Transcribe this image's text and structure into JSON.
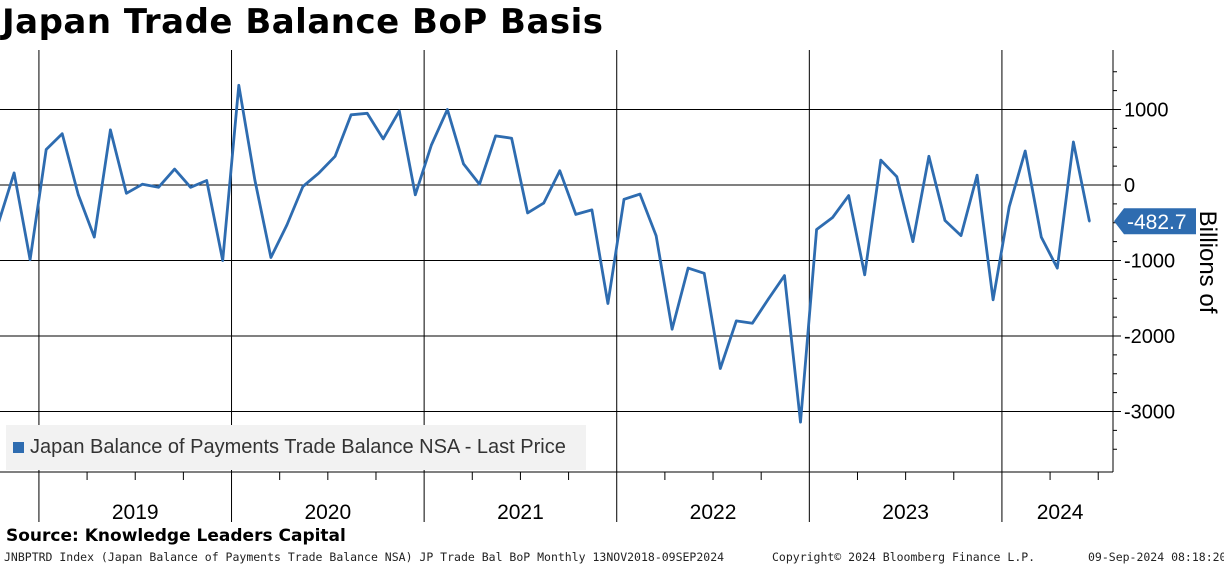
{
  "title": "Japan Trade Balance BoP Basis",
  "source": "Source: Knowledge Leaders Capital",
  "footer": {
    "left": "JNBPTRD Index (Japan Balance of Payments Trade Balance NSA) JP Trade Bal BoP  Monthly 13NOV2018-09SEP2024",
    "center": "Copyright© 2024 Bloomberg Finance L.P.",
    "right": "09-Sep-2024 08:18:20"
  },
  "colors": {
    "line": "#2e6cb0",
    "grid": "#000000",
    "legend_bg": "#f2f2f2"
  },
  "chart_data": {
    "type": "line",
    "title": "Japan Trade Balance BoP Basis",
    "ylabel": "Billions of",
    "ylim": [
      -3800,
      1800
    ],
    "yticks": [
      1000,
      0,
      -1000,
      -2000,
      -3000
    ],
    "ytick_labels": [
      "1000",
      "0",
      "-1000",
      "-2000",
      "-3000"
    ],
    "year_labels": [
      "2019",
      "2020",
      "2021",
      "2022",
      "2023",
      "2024"
    ],
    "legend": "Japan Balance of Payments Trade Balance NSA - Last Price",
    "last_value_label": "-482.7",
    "grid": true,
    "series": [
      {
        "name": "Japan Balance of Payments Trade Balance NSA - Last Price",
        "x": [
          "2018-11",
          "2018-12",
          "2019-01",
          "2019-02",
          "2019-03",
          "2019-04",
          "2019-05",
          "2019-06",
          "2019-07",
          "2019-08",
          "2019-09",
          "2019-10",
          "2019-11",
          "2019-12",
          "2020-01",
          "2020-02",
          "2020-03",
          "2020-04",
          "2020-05",
          "2020-06",
          "2020-07",
          "2020-08",
          "2020-09",
          "2020-10",
          "2020-11",
          "2020-12",
          "2021-01",
          "2021-02",
          "2021-03",
          "2021-04",
          "2021-05",
          "2021-06",
          "2021-07",
          "2021-08",
          "2021-09",
          "2021-10",
          "2021-11",
          "2021-12",
          "2022-01",
          "2022-02",
          "2022-03",
          "2022-04",
          "2022-05",
          "2022-06",
          "2022-07",
          "2022-08",
          "2022-09",
          "2022-10",
          "2022-11",
          "2022-12",
          "2023-01",
          "2023-02",
          "2023-03",
          "2023-04",
          "2023-05",
          "2023-06",
          "2023-07",
          "2023-08",
          "2023-09",
          "2023-10",
          "2023-11",
          "2023-12",
          "2024-01",
          "2024-02",
          "2024-03",
          "2024-04",
          "2024-05",
          "2024-06",
          "2024-07"
        ],
        "values": [
          -520,
          160,
          -990,
          470,
          680,
          -130,
          -690,
          730,
          -110,
          10,
          -30,
          210,
          -30,
          60,
          -1000,
          1320,
          70,
          -960,
          -530,
          -20,
          160,
          380,
          930,
          950,
          610,
          980,
          -130,
          530,
          1000,
          280,
          10,
          650,
          620,
          -370,
          -240,
          190,
          -390,
          -330,
          -1570,
          -190,
          -120,
          -670,
          -1910,
          -1100,
          -1170,
          -2430,
          -1800,
          -1830,
          -1510,
          -1200,
          -3140,
          -590,
          -430,
          -140,
          -1190,
          330,
          110,
          -750,
          380,
          -470,
          -670,
          130,
          -1520,
          -290,
          450,
          -690,
          -1100,
          570,
          -480
        ]
      }
    ]
  }
}
